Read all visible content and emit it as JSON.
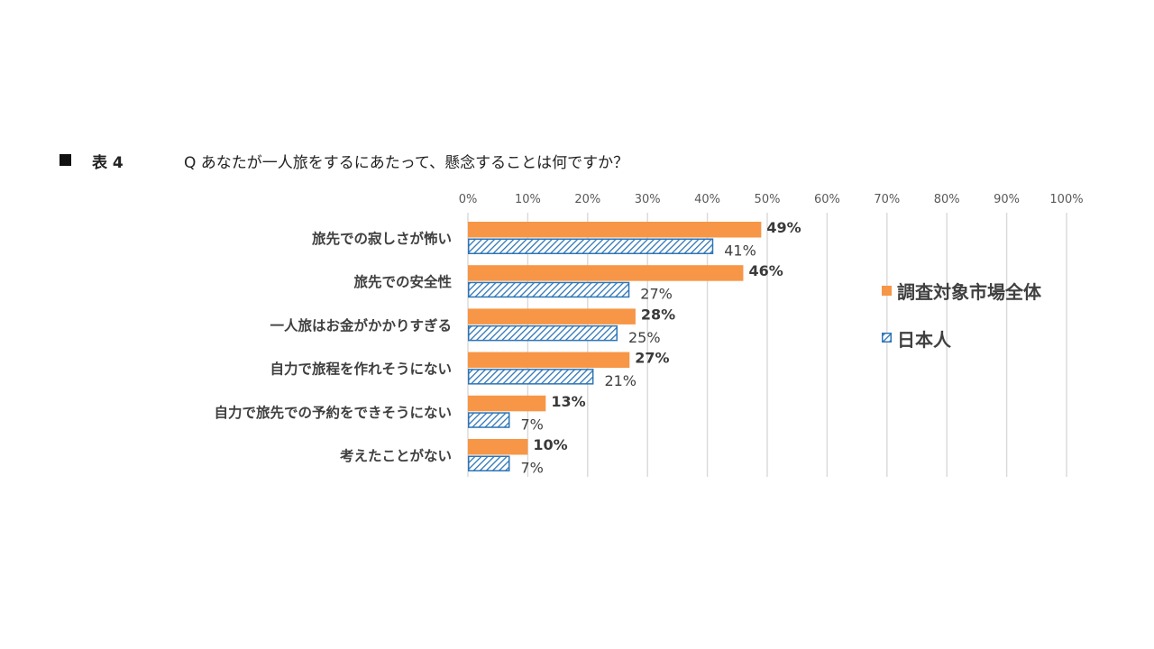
{
  "header": {
    "table_label": "表 4",
    "question": "Q  あなたが一人旅をするにあたって、懸念することは何ですか？"
  },
  "colors": {
    "series_a": "#F79646",
    "series_b": "#2E75B6",
    "grid": "#D9D9D9"
  },
  "chart_data": {
    "type": "bar",
    "orientation": "horizontal",
    "categories": [
      "旅先での寂しさが怖い",
      "旅先での安全性",
      "一人旅はお金がかかりすぎる",
      "自力で旅程を作れそうにない",
      "自力で旅先での予約をできそうにない",
      "考えたことがない"
    ],
    "series": [
      {
        "name": "調査対象市場全体",
        "values": [
          49,
          46,
          28,
          27,
          13,
          10
        ],
        "labels": [
          "49%",
          "46%",
          "28%",
          "27%",
          "13%",
          "10%"
        ]
      },
      {
        "name": "日本人",
        "values": [
          41,
          27,
          25,
          21,
          7,
          7
        ],
        "labels": [
          "41%",
          "27%",
          "25%",
          "21%",
          "7%",
          "7%"
        ]
      }
    ],
    "xlim": [
      0,
      100
    ],
    "xticks": [
      "0%",
      "10%",
      "20%",
      "30%",
      "40%",
      "50%",
      "60%",
      "70%",
      "80%",
      "90%",
      "100%"
    ],
    "grid": true,
    "legend_position": "right"
  }
}
